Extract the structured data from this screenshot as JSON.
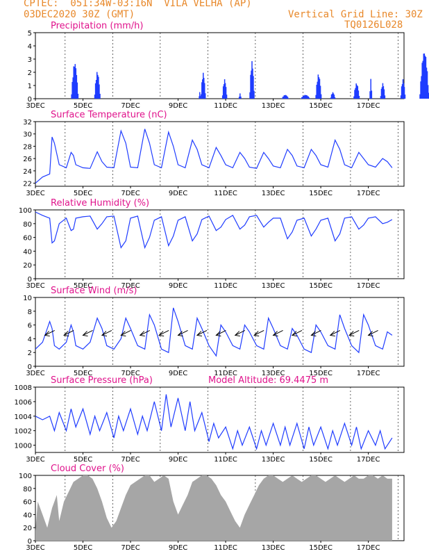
{
  "header": {
    "line1": "CPTEC:  051:34W-03:16N  VILA VELHA (AP)",
    "line2": "03DEC2020 30Z (GMT)",
    "grid_note": "Vertical Grid Line: 30Z",
    "run_id": "TQ0126L028"
  },
  "colors": {
    "header": "#e8882a",
    "title": "#e0138c",
    "series": "#1f3cff",
    "cloud": "#a6a6a6",
    "arrow": "#000000"
  },
  "x_ticks": [
    "3DEC",
    "5DEC",
    "7DEC",
    "9DEC",
    "11DEC",
    "13DEC",
    "15DEC",
    "17DEC"
  ],
  "chart_data": [
    {
      "type": "bar",
      "title": "Precipitation (mm/h)",
      "ylim": [
        0,
        5
      ],
      "yticks": [
        "0",
        "1",
        "2",
        "3",
        "4",
        "5"
      ],
      "grid": "vertical dashed",
      "x_unit": "days since 3DEC 00Z",
      "bursts": [
        {
          "x": 1.65,
          "peak": 2.8,
          "width": 0.3
        },
        {
          "x": 2.6,
          "peak": 2.1,
          "width": 0.25
        },
        {
          "x": 6.9,
          "peak": 0.5,
          "width": 0.06
        },
        {
          "x": 7.05,
          "peak": 2.0,
          "width": 0.2
        },
        {
          "x": 7.95,
          "peak": 1.5,
          "width": 0.2
        },
        {
          "x": 8.6,
          "peak": 0.4,
          "width": 0.1
        },
        {
          "x": 9.1,
          "peak": 2.9,
          "width": 0.2
        },
        {
          "x": 10.5,
          "peak": 0.3,
          "width": 0.3
        },
        {
          "x": 11.35,
          "peak": 0.3,
          "width": 0.4
        },
        {
          "x": 11.9,
          "peak": 1.9,
          "width": 0.25
        },
        {
          "x": 12.5,
          "peak": 0.5,
          "width": 0.2
        },
        {
          "x": 13.5,
          "peak": 1.2,
          "width": 0.25
        },
        {
          "x": 14.1,
          "peak": 1.5,
          "width": 0.1
        },
        {
          "x": 14.6,
          "peak": 1.2,
          "width": 0.2
        },
        {
          "x": 15.45,
          "peak": 1.5,
          "width": 0.2
        },
        {
          "x": 16.35,
          "peak": 3.7,
          "width": 0.4
        }
      ]
    },
    {
      "type": "line",
      "title": "Surface Temperature (nC)",
      "ylim": [
        21.5,
        32
      ],
      "yticks": [
        "22",
        "24",
        "26",
        "28",
        "30",
        "32"
      ],
      "x": [
        0,
        0.3,
        0.6,
        0.7,
        0.8,
        1.0,
        1.3,
        1.5,
        1.6,
        1.7,
        2.0,
        2.3,
        2.6,
        2.8,
        3.0,
        3.3,
        3.6,
        3.8,
        4.0,
        4.3,
        4.6,
        4.8,
        5.0,
        5.3,
        5.6,
        5.8,
        6.0,
        6.3,
        6.6,
        6.8,
        7.0,
        7.3,
        7.6,
        7.8,
        8.0,
        8.3,
        8.6,
        8.8,
        9.0,
        9.3,
        9.6,
        9.8,
        10.0,
        10.3,
        10.6,
        10.8,
        11.0,
        11.3,
        11.6,
        11.8,
        12.0,
        12.3,
        12.6,
        12.8,
        13.0,
        13.3,
        13.6,
        13.8,
        14.0,
        14.3,
        14.6,
        14.8,
        15.0
      ],
      "y": [
        22,
        23,
        23.5,
        29.5,
        28.5,
        25,
        24.5,
        27,
        26.5,
        25,
        24.5,
        24.4,
        27.1,
        25.5,
        24.6,
        24.5,
        30.5,
        28.5,
        24.6,
        24.5,
        30.8,
        28.5,
        25,
        24.5,
        30.3,
        28,
        25,
        24.5,
        29,
        27.5,
        25,
        24.5,
        27.8,
        26.5,
        25,
        24.5,
        27,
        26,
        24.6,
        24.4,
        27,
        26,
        24.8,
        24.5,
        27.5,
        26.5,
        24.8,
        24.5,
        27.5,
        26.5,
        25,
        24.6,
        29,
        27.5,
        25,
        24.5,
        27,
        26,
        25,
        24.6,
        26,
        25.5,
        24.5
      ]
    },
    {
      "type": "line",
      "title": "Relative Humidity (%)",
      "ylim": [
        0,
        100
      ],
      "yticks": [
        "0",
        "20",
        "40",
        "60",
        "80",
        "100"
      ],
      "x": [
        0,
        0.3,
        0.6,
        0.7,
        0.8,
        1.0,
        1.3,
        1.5,
        1.6,
        1.7,
        2.0,
        2.3,
        2.6,
        2.8,
        3.0,
        3.3,
        3.6,
        3.8,
        4.0,
        4.3,
        4.6,
        4.8,
        5.0,
        5.3,
        5.6,
        5.8,
        6.0,
        6.3,
        6.6,
        6.8,
        7.0,
        7.3,
        7.6,
        7.8,
        8.0,
        8.3,
        8.6,
        8.8,
        9.0,
        9.3,
        9.6,
        9.8,
        10.0,
        10.3,
        10.6,
        10.8,
        11.0,
        11.3,
        11.6,
        11.8,
        12.0,
        12.3,
        12.6,
        12.8,
        13.0,
        13.3,
        13.6,
        13.8,
        14.0,
        14.3,
        14.6,
        14.8,
        15.0
      ],
      "y": [
        97,
        92,
        88,
        52,
        55,
        80,
        88,
        70,
        72,
        88,
        90,
        91,
        72,
        80,
        90,
        91,
        45,
        55,
        88,
        91,
        45,
        60,
        85,
        90,
        48,
        62,
        85,
        90,
        55,
        65,
        86,
        91,
        70,
        75,
        86,
        92,
        72,
        78,
        90,
        92,
        75,
        82,
        88,
        88,
        58,
        68,
        85,
        88,
        62,
        72,
        85,
        88,
        55,
        65,
        88,
        90,
        72,
        78,
        88,
        90,
        80,
        82,
        86
      ]
    },
    {
      "type": "line",
      "title": "Surface Wind (m/s)",
      "ylim": [
        0,
        10
      ],
      "yticks": [
        "0",
        "2",
        "4",
        "6",
        "8",
        "10"
      ],
      "x": [
        0,
        0.3,
        0.6,
        0.7,
        0.8,
        1.0,
        1.3,
        1.5,
        1.6,
        1.7,
        2.0,
        2.3,
        2.6,
        2.8,
        3.0,
        3.3,
        3.6,
        3.8,
        4.0,
        4.3,
        4.6,
        4.8,
        5.0,
        5.3,
        5.6,
        5.8,
        6.0,
        6.3,
        6.6,
        6.8,
        7.0,
        7.3,
        7.6,
        7.8,
        8.0,
        8.3,
        8.6,
        8.8,
        9.0,
        9.3,
        9.6,
        9.8,
        10.0,
        10.3,
        10.6,
        10.8,
        11.0,
        11.3,
        11.6,
        11.8,
        12.0,
        12.3,
        12.6,
        12.8,
        13.0,
        13.3,
        13.6,
        13.8,
        14.0,
        14.3,
        14.6,
        14.8,
        15.0
      ],
      "y": [
        2.5,
        3.5,
        6.5,
        5.5,
        3,
        2.5,
        3.5,
        6,
        5,
        3,
        2.5,
        3.5,
        7,
        5.5,
        3,
        2.5,
        4,
        7,
        5.5,
        3,
        2.5,
        7.5,
        6,
        2.5,
        2,
        8.5,
        6.5,
        3,
        2.5,
        7,
        5.5,
        3,
        1.5,
        6,
        5,
        3,
        2.5,
        6,
        5,
        3,
        2.5,
        7,
        5.5,
        3,
        2.5,
        5.5,
        4.5,
        2.5,
        2,
        6,
        5,
        3,
        2.5,
        7.5,
        5.5,
        3,
        2,
        7.5,
        6,
        3,
        2.5,
        5,
        4.5
      ],
      "arrows": [
        {
          "x": 0.4,
          "y": 4.5,
          "dir": "sw"
        },
        {
          "x": 1.2,
          "y": 4.5,
          "dir": "sw"
        },
        {
          "x": 2.0,
          "y": 4.5,
          "dir": "sw"
        },
        {
          "x": 2.8,
          "y": 4.5,
          "dir": "sw"
        },
        {
          "x": 3.6,
          "y": 4.5,
          "dir": "sw"
        },
        {
          "x": 4.4,
          "y": 4.5,
          "dir": "sw"
        },
        {
          "x": 5.2,
          "y": 4.5,
          "dir": "sw"
        },
        {
          "x": 6.0,
          "y": 4.5,
          "dir": "sw"
        },
        {
          "x": 6.8,
          "y": 4.5,
          "dir": "sw"
        },
        {
          "x": 7.6,
          "y": 4.5,
          "dir": "sw"
        },
        {
          "x": 8.4,
          "y": 4.5,
          "dir": "sw"
        },
        {
          "x": 9.2,
          "y": 4.5,
          "dir": "sw"
        },
        {
          "x": 10.0,
          "y": 4.5,
          "dir": "sw"
        },
        {
          "x": 10.8,
          "y": 4.5,
          "dir": "sw"
        },
        {
          "x": 11.6,
          "y": 4.5,
          "dir": "sw"
        },
        {
          "x": 12.4,
          "y": 4.5,
          "dir": "sw"
        },
        {
          "x": 13.2,
          "y": 4.5,
          "dir": "sw"
        },
        {
          "x": 14.0,
          "y": 4.5,
          "dir": "sw"
        }
      ]
    },
    {
      "type": "line",
      "title": "Surface Pressure (hPa)",
      "subtitle": "Model Altitude: 69.4475 m",
      "ylim": [
        999,
        1008
      ],
      "yticks": [
        "1000",
        "1002",
        "1004",
        "1006",
        "1008"
      ],
      "x": [
        0,
        0.3,
        0.6,
        0.8,
        1.0,
        1.3,
        1.5,
        1.7,
        2.0,
        2.3,
        2.5,
        2.7,
        3.0,
        3.3,
        3.5,
        3.7,
        4.0,
        4.3,
        4.5,
        4.7,
        5.0,
        5.3,
        5.5,
        5.7,
        6.0,
        6.3,
        6.5,
        6.7,
        7.0,
        7.3,
        7.5,
        7.7,
        8.0,
        8.3,
        8.5,
        8.7,
        9.0,
        9.3,
        9.5,
        9.7,
        10.0,
        10.3,
        10.5,
        10.7,
        11.0,
        11.3,
        11.5,
        11.7,
        12.0,
        12.3,
        12.5,
        12.7,
        13.0,
        13.3,
        13.5,
        13.7,
        14.0,
        14.3,
        14.5,
        14.7,
        15.0
      ],
      "y": [
        1004,
        1003.5,
        1004,
        1002,
        1004.5,
        1002,
        1005,
        1002.5,
        1005,
        1001.5,
        1004,
        1002,
        1004.5,
        1001,
        1004,
        1002,
        1005,
        1001.5,
        1004,
        1002,
        1006,
        1002,
        1007,
        1002.5,
        1006.5,
        1002,
        1006,
        1002,
        1004.5,
        1000.5,
        1003,
        1001,
        1002.5,
        999.5,
        1002,
        1000,
        1002.5,
        999.5,
        1002,
        1000,
        1003,
        1000,
        1002.5,
        1000,
        1003,
        999.5,
        1002.5,
        1000,
        1002.5,
        999.5,
        1002,
        1000,
        1003,
        1000,
        1002.5,
        999.5,
        1002,
        1000,
        1002,
        999.5,
        1001
      ]
    },
    {
      "type": "area",
      "title": "Cloud Cover (%)",
      "ylim": [
        0,
        100
      ],
      "yticks": [
        "0",
        "20",
        "40",
        "60",
        "80",
        "100"
      ],
      "x": [
        0,
        0.1,
        0.3,
        0.5,
        0.7,
        0.9,
        1.0,
        1.2,
        1.4,
        1.6,
        1.8,
        2.0,
        2.2,
        2.4,
        2.6,
        2.8,
        3.0,
        3.2,
        3.4,
        3.6,
        3.8,
        4.0,
        4.2,
        4.4,
        4.6,
        4.8,
        5.0,
        5.2,
        5.4,
        5.6,
        5.8,
        6.0,
        6.2,
        6.4,
        6.6,
        6.8,
        7.0,
        7.2,
        7.4,
        7.6,
        7.8,
        8.0,
        8.2,
        8.4,
        8.6,
        8.8,
        9.0,
        9.2,
        9.4,
        9.6,
        9.8,
        10.0,
        10.2,
        10.4,
        10.6,
        10.8,
        11.0,
        11.2,
        11.4,
        11.6,
        11.8,
        12.0,
        12.2,
        12.4,
        12.6,
        12.8,
        13.0,
        13.2,
        13.4,
        13.6,
        13.8,
        14.0,
        14.2,
        14.4,
        14.6,
        14.8,
        15.0
      ],
      "y": [
        15,
        60,
        40,
        20,
        50,
        70,
        30,
        60,
        75,
        90,
        95,
        100,
        100,
        95,
        80,
        60,
        35,
        20,
        30,
        50,
        70,
        85,
        90,
        95,
        100,
        100,
        90,
        95,
        100,
        95,
        60,
        40,
        55,
        70,
        90,
        95,
        100,
        100,
        95,
        85,
        70,
        60,
        45,
        30,
        20,
        40,
        55,
        70,
        85,
        95,
        100,
        100,
        95,
        90,
        95,
        100,
        95,
        90,
        95,
        100,
        100,
        95,
        90,
        95,
        100,
        95,
        90,
        95,
        100,
        95,
        95,
        100,
        100,
        95,
        100,
        95,
        95
      ]
    }
  ]
}
